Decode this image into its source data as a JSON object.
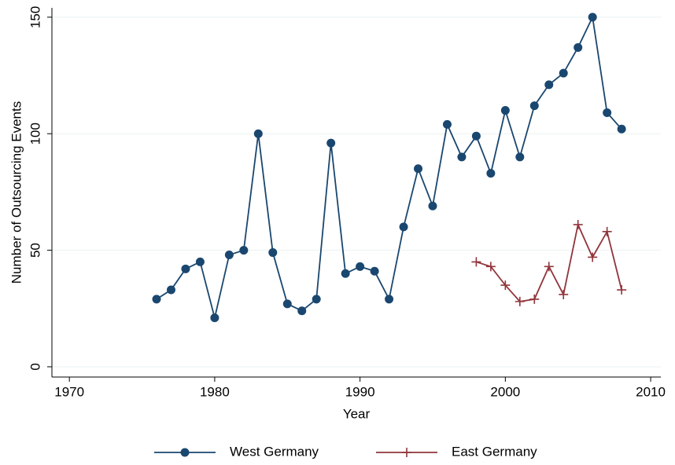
{
  "chart_data": {
    "type": "line",
    "xlabel": "Year",
    "ylabel": "Number of Outsourcing Events",
    "xlim": [
      1968.8,
      2010.7
    ],
    "ylim": [
      -4.4,
      154
    ],
    "xticks": [
      1970,
      1980,
      1990,
      2000,
      2010
    ],
    "yticks": [
      0,
      50,
      100,
      150
    ],
    "grid": true,
    "legend": "bottom",
    "series": [
      {
        "name": "West Germany",
        "color": "#1a476f",
        "marker": "circle",
        "x": [
          1976,
          1977,
          1978,
          1979,
          1980,
          1981,
          1982,
          1983,
          1984,
          1985,
          1986,
          1987,
          1988,
          1989,
          1990,
          1991,
          1992,
          1993,
          1994,
          1995,
          1996,
          1997,
          1998,
          1999,
          2000,
          2001,
          2002,
          2003,
          2004,
          2005,
          2006,
          2007,
          2008
        ],
        "values": [
          29,
          33,
          42,
          45,
          21,
          48,
          50,
          100,
          49,
          27,
          24,
          29,
          96,
          40,
          43,
          41,
          29,
          60,
          85,
          69,
          104,
          90,
          99,
          83,
          110,
          90,
          112,
          121,
          126,
          137,
          150,
          109,
          102
        ]
      },
      {
        "name": "East Germany",
        "color": "#90353b",
        "marker": "plus",
        "x": [
          1998,
          1999,
          2000,
          2001,
          2002,
          2003,
          2004,
          2005,
          2006,
          2007,
          2008
        ],
        "values": [
          45,
          43,
          35,
          28,
          29,
          43,
          31,
          61,
          47,
          58,
          33
        ]
      }
    ]
  }
}
